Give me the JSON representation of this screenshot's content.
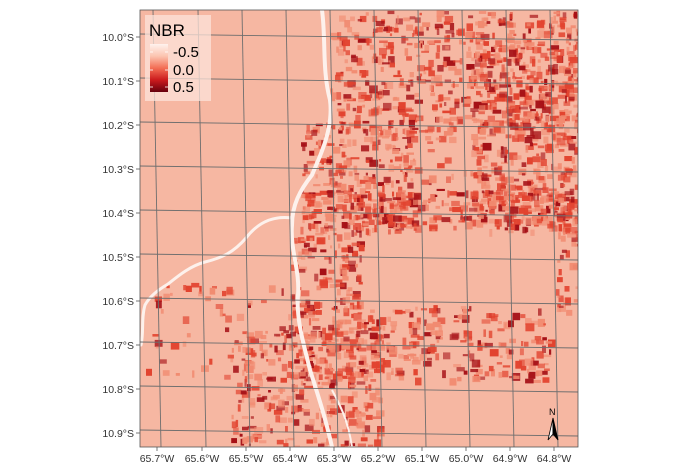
{
  "map": {
    "legend": {
      "title": "NBR",
      "labels": [
        "-0.5",
        "0.0",
        "0.5"
      ],
      "gradient": [
        "#fff2ee",
        "#fcc5b1",
        "#f36e55",
        "#cb1a1d",
        "#67000d"
      ]
    },
    "y_axis_labels": [
      "10.0°S",
      "10.1°S",
      "10.2°S",
      "10.3°S",
      "10.4°S",
      "10.5°S",
      "10.6°S",
      "10.7°S",
      "10.8°S",
      "10.9°S"
    ],
    "x_axis_labels": [
      "65.7°W",
      "65.6°W",
      "65.5°W",
      "65.4°W",
      "65.3°W",
      "65.2°W",
      "65.1°W",
      "65.0°W",
      "64.9°W",
      "64.8°W"
    ],
    "north_arrow_label": "N",
    "colors": {
      "background": "#f6b7a2",
      "grid": "#6e6e6e",
      "water": "#fdf1ec",
      "burn_light": "#f18a70",
      "burn_mid": "#e2432f",
      "burn_dark": "#a50f15"
    }
  }
}
